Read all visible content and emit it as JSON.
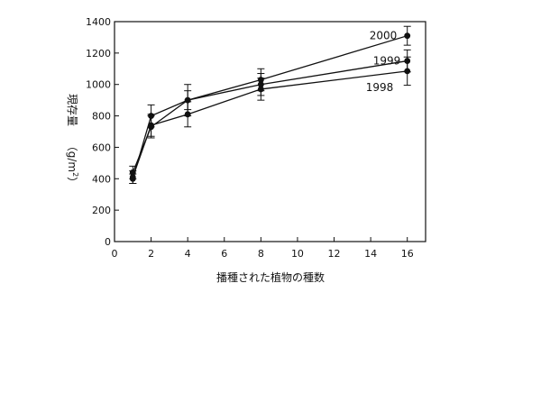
{
  "chart_data": {
    "type": "line",
    "xlabel": "播種された植物の種数",
    "ylabel_main": "現存量",
    "ylabel_unit_prefix": "（g/m",
    "ylabel_unit_sup": "2",
    "ylabel_unit_suffix": "）",
    "xlim": [
      0,
      17
    ],
    "ylim": [
      0,
      1400
    ],
    "xticks": [
      0,
      2,
      4,
      6,
      8,
      10,
      12,
      14,
      16
    ],
    "xtick_labels": [
      "0",
      "2",
      "4",
      "6",
      "8",
      "10",
      "12",
      "14",
      "16"
    ],
    "yticks": [
      0,
      200,
      400,
      600,
      800,
      1000,
      1200,
      1400
    ],
    "ytick_labels": [
      "0",
      "200",
      "400",
      "600",
      "800",
      "1000",
      "1200",
      "1400"
    ],
    "grid": false,
    "legend": "labels at line ends",
    "x": [
      1,
      2,
      4,
      8,
      16
    ],
    "series": [
      {
        "name": "2000",
        "values": [
          400,
          800,
          900,
          1030,
          1310
        ],
        "err": [
          30,
          70,
          100,
          70,
          60
        ]
      },
      {
        "name": "1999",
        "values": [
          440,
          730,
          900,
          1000,
          1150
        ],
        "err": [
          40,
          70,
          60,
          70,
          70
        ]
      },
      {
        "name": "1998",
        "values": [
          410,
          740,
          810,
          970,
          1085
        ],
        "err": [
          40,
          70,
          80,
          70,
          90
        ]
      }
    ]
  }
}
